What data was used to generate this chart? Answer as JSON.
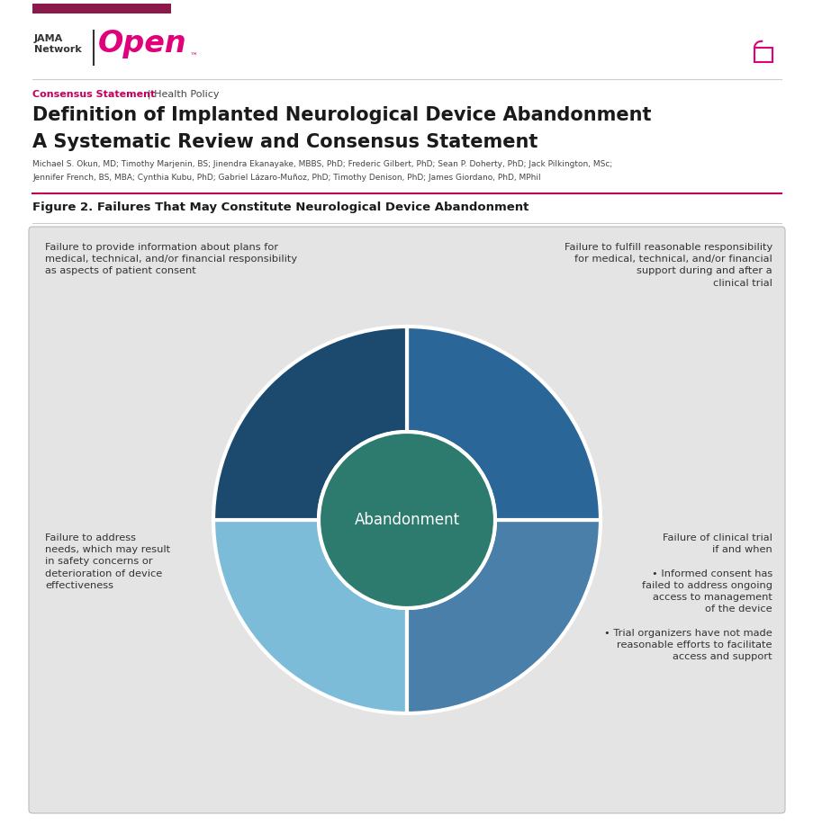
{
  "bg_color": "#ffffff",
  "header_bar_color": "#8b1a4a",
  "jama_color": "#333333",
  "open_color": "#e0007a",
  "divider_color": "#cccccc",
  "tag_text": "Consensus Statement",
  "tag_color": "#c0005a",
  "policy_text": "| Health Policy",
  "policy_color": "#444444",
  "title_line1": "Definition of Implanted Neurological Device Abandonment",
  "title_line2": "A Systematic Review and Consensus Statement",
  "title_color": "#1a1a1a",
  "authors_line1": "Michael S. Okun, MD; Timothy Marjenin, BS; Jinendra Ekanayake, MBBS, PhD; Frederic Gilbert, PhD; Sean P. Doherty, PhD; Jack Pilkington, MSc;",
  "authors_line2": "Jennifer French, BS, MBA; Cynthia Kubu, PhD; Gabriel Lázaro-Muñoz, PhD; Timothy Denison, PhD; James Giordano, PhD, MPhil",
  "authors_color": "#444444",
  "fig_caption": "Figure 2. Failures That May Constitute Neurological Device Abandonment",
  "fig_caption_color": "#1a1a1a",
  "panel_bg": "#e4e4e4",
  "panel_border": "#bbbbbb",
  "upper_left_text": "Failure to provide information about plans for\nmedical, technical, and/or financial responsibility\nas aspects of patient consent",
  "upper_right_text": "Failure to fulfill reasonable responsibility\nfor medical, technical, and/or financial\nsupport during and after a\nclinical trial",
  "lower_left_text": "Failure to address\nneeds, which may result\nin safety concerns or\ndeterioration of device\neffectiveness",
  "lower_right_text": "Failure of clinical trial\nif and when\n\n• Informed consent has\nfailed to address ongoing\naccess to management\nof the device\n\n• Trial organizers have not made\nreasonable efforts to facilitate\naccess and support",
  "text_color": "#333333",
  "color_upper_left": "#7dbcd9",
  "color_upper_right": "#4a7faa",
  "color_lower_left": "#1b4a6e",
  "color_lower_right": "#2a6698",
  "center_color": "#2d7a6e",
  "center_text": "Abandonment",
  "center_text_color": "#ffffff",
  "accent_line_color": "#c0005a"
}
